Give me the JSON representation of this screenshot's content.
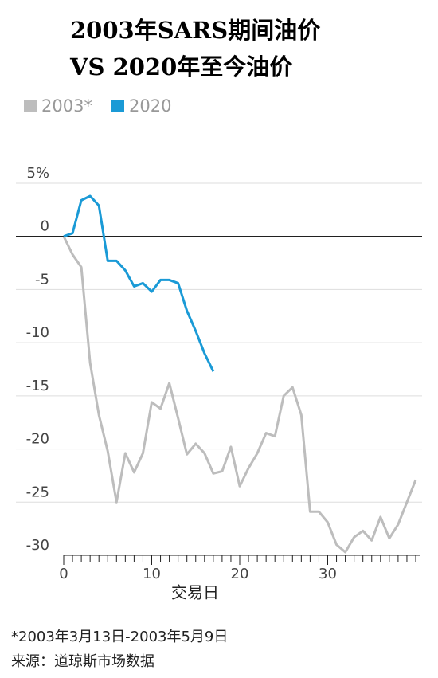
{
  "chart_data": {
    "type": "line",
    "title": [
      "2003年SARS期间油价",
      "VS 2020年至今油价"
    ],
    "x_label": "交易日",
    "notes": [
      "*2003年3月13日-2003年5月9日",
      "来源：道琼斯市场数据"
    ],
    "series": [
      {
        "name": "2003*",
        "color": "#bdbdbd",
        "x": [
          0,
          1,
          2,
          3,
          4,
          5,
          6,
          7,
          8,
          9,
          10,
          11,
          12,
          13,
          14,
          15,
          16,
          17,
          18,
          19,
          20,
          21,
          22,
          23,
          24,
          25,
          26,
          27,
          28,
          29,
          30,
          31,
          32,
          33,
          34,
          35,
          36,
          37,
          38,
          39,
          40
        ],
        "values": [
          0,
          -1.7,
          -2.9,
          -11.9,
          -16.8,
          -20.2,
          -25.0,
          -20.4,
          -22.2,
          -20.4,
          -15.6,
          -16.2,
          -13.8,
          -17.1,
          -20.5,
          -19.5,
          -20.4,
          -22.3,
          -22.1,
          -19.8,
          -23.5,
          -21.8,
          -20.4,
          -18.5,
          -18.8,
          -15.0,
          -14.2,
          -16.8,
          -25.9,
          -25.9,
          -26.9,
          -29.0,
          -29.7,
          -28.3,
          -27.7,
          -28.6,
          -26.4,
          -28.4,
          -27.1,
          -25.0,
          -22.9
        ]
      },
      {
        "name": "2020",
        "color": "#1a9ad6",
        "x": [
          0,
          1,
          2,
          3,
          4,
          5,
          6,
          7,
          8,
          9,
          10,
          11,
          12,
          13,
          14,
          15,
          16,
          17
        ],
        "values": [
          0,
          0.3,
          3.4,
          3.8,
          2.9,
          -2.3,
          -2.3,
          -3.2,
          -4.7,
          -4.4,
          -5.2,
          -4.1,
          -4.1,
          -4.4,
          -7.0,
          -8.9,
          -11.0,
          -12.7
        ]
      }
    ],
    "xlim": [
      0,
      40
    ],
    "xticks": [
      0,
      10,
      20,
      30
    ],
    "ylim": [
      -30,
      5
    ],
    "yticks": [
      {
        "value": 5,
        "label": "5%"
      },
      0,
      -5,
      -10,
      -15,
      -20,
      -25,
      -30
    ],
    "grid": true
  }
}
